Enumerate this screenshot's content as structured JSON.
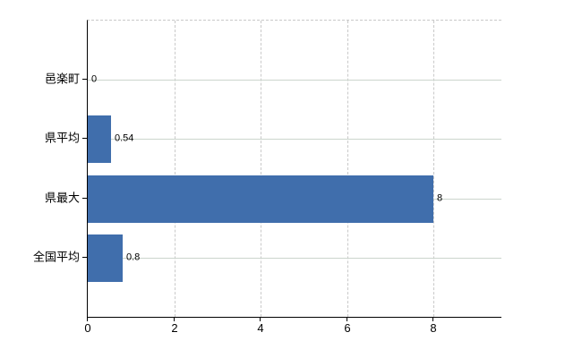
{
  "chart_data": {
    "type": "bar",
    "orientation": "horizontal",
    "title": "",
    "xlabel": "",
    "ylabel": "",
    "categories": [
      "邑楽町",
      "県平均",
      "県最大",
      "全国平均"
    ],
    "values": [
      0,
      0.54,
      8,
      0.8
    ],
    "value_labels": [
      "0",
      "0.54",
      "8",
      "0.8"
    ],
    "xlim": [
      0,
      9.575
    ],
    "xticks": [
      0,
      2,
      4,
      6,
      8
    ],
    "xtick_labels": [
      "0",
      "2",
      "4",
      "6",
      "8"
    ],
    "grid": {
      "vertical": "dashed",
      "horizontal": "solid",
      "top_border": "dashed"
    },
    "legend": "none",
    "colors": {
      "bar": "#406eac",
      "horizontal_gridline": "#ccd5cd",
      "vertical_gridline": "#c9c9c9",
      "axis": "#000000",
      "text": "#000000",
      "background": "#ffffff"
    }
  }
}
